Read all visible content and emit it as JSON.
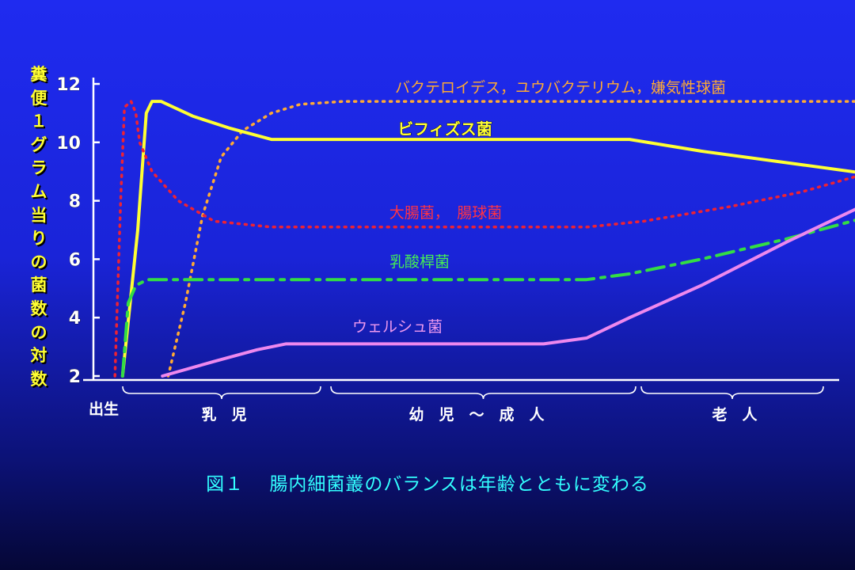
{
  "caption": "図１　 腸内細菌叢のバランスは年齢とともに変わる",
  "chart_data": {
    "type": "line",
    "ylabel": "糞便１グラム当りの菌数の対数",
    "yticks": [
      2,
      4,
      6,
      8,
      10,
      12
    ],
    "ylim": [
      2,
      12
    ],
    "grid": false,
    "x_start_label": "出生",
    "periods": [
      "乳　児",
      "幼　児　～　成　人",
      "老　人"
    ],
    "series": [
      {
        "name": "バクテロイデス，ユウバクテリウム，嫌気性球菌",
        "color": "#ffaa33",
        "style": "dotted",
        "points": [
          [
            0.8,
            2
          ],
          [
            2,
            4.5
          ],
          [
            3.2,
            7.5
          ],
          [
            4.5,
            9.5
          ],
          [
            6,
            10.4
          ],
          [
            8,
            11
          ],
          [
            10,
            11.3
          ],
          [
            13,
            11.4
          ],
          [
            20,
            11.4
          ],
          [
            50,
            11.4
          ]
        ]
      },
      {
        "name": "ビフィズス菌",
        "color": "#ffff33",
        "style": "solid",
        "points": [
          [
            -3.6,
            2
          ],
          [
            -2,
            7
          ],
          [
            -1.1,
            11
          ],
          [
            -0.5,
            11.4
          ],
          [
            0.3,
            11.4
          ],
          [
            2.5,
            10.9
          ],
          [
            5,
            10.5
          ],
          [
            8,
            10.1
          ],
          [
            16,
            10.1
          ],
          [
            33,
            10.1
          ],
          [
            38,
            9.7
          ],
          [
            44,
            9.3
          ],
          [
            50,
            8.9
          ]
        ]
      },
      {
        "name": "大腸菌，　腸球菌",
        "color": "#ee2233",
        "style": "dotted",
        "points": [
          [
            -4.4,
            2
          ],
          [
            -3.8,
            8
          ],
          [
            -3.4,
            11.2
          ],
          [
            -2.7,
            11.4
          ],
          [
            -2.2,
            11
          ],
          [
            -1.8,
            10
          ],
          [
            -0.5,
            9
          ],
          [
            1.5,
            8
          ],
          [
            4,
            7.3
          ],
          [
            8,
            7.1
          ],
          [
            16,
            7.1
          ],
          [
            30,
            7.1
          ],
          [
            34,
            7.3
          ],
          [
            40,
            7.8
          ],
          [
            45,
            8.3
          ],
          [
            50,
            9
          ]
        ]
      },
      {
        "name": "乳酸桿菌",
        "color": "#33dd44",
        "style": "dashdot",
        "points": [
          [
            -3.6,
            2
          ],
          [
            -3,
            4.5
          ],
          [
            -2.2,
            5.1
          ],
          [
            -1,
            5.3
          ],
          [
            4,
            5.3
          ],
          [
            16,
            5.3
          ],
          [
            30,
            5.3
          ],
          [
            33,
            5.5
          ],
          [
            38,
            6
          ],
          [
            44,
            6.7
          ],
          [
            50,
            7.5
          ]
        ]
      },
      {
        "name": "ウェルシュ菌",
        "color": "#ee88ee",
        "style": "solid",
        "points": [
          [
            0.4,
            2
          ],
          [
            4,
            2.5
          ],
          [
            7,
            2.9
          ],
          [
            9,
            3.1
          ],
          [
            16,
            3.1
          ],
          [
            27,
            3.1
          ],
          [
            30,
            3.3
          ],
          [
            33,
            4
          ],
          [
            38,
            5.1
          ],
          [
            44,
            6.6
          ],
          [
            50,
            8
          ]
        ]
      }
    ]
  }
}
